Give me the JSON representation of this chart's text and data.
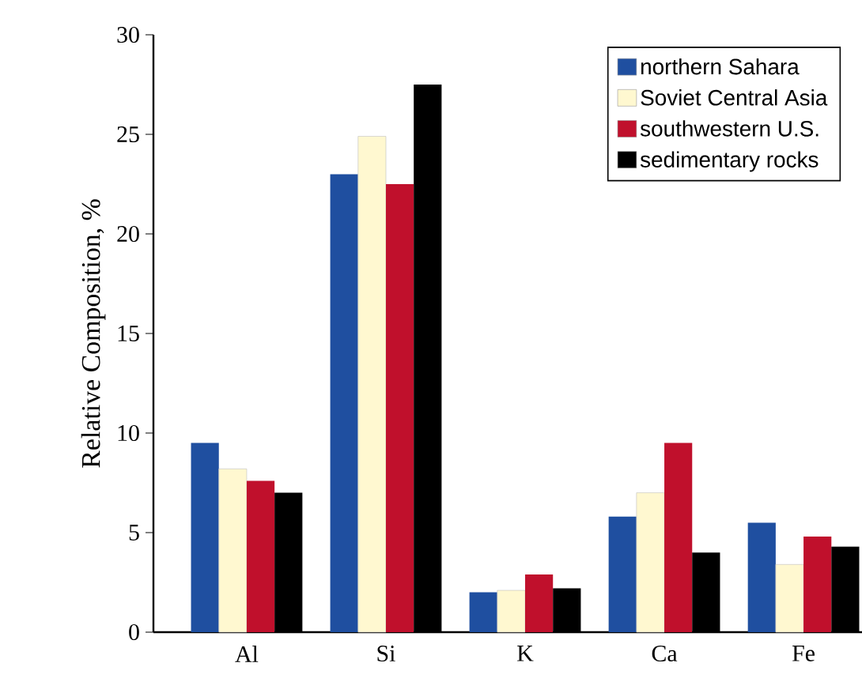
{
  "chart_data": {
    "type": "bar",
    "ylabel": "Relative Composition, %",
    "categories": [
      "Al",
      "Si",
      "K",
      "Ca",
      "Fe"
    ],
    "series": [
      {
        "name": "northern Sahara",
        "color": "#1f4fa0",
        "values": [
          9.5,
          23.0,
          2.0,
          5.8,
          5.5
        ]
      },
      {
        "name": "Soviet Central Asia",
        "color": "#fff8d0",
        "values": [
          8.2,
          24.9,
          2.1,
          7.0,
          3.4
        ]
      },
      {
        "name": "southwestern U.S.",
        "color": "#c0102c",
        "values": [
          7.6,
          22.5,
          2.9,
          9.5,
          4.8
        ]
      },
      {
        "name": "sedimentary rocks",
        "color": "#000000",
        "values": [
          7.0,
          27.5,
          2.2,
          4.0,
          4.3
        ]
      }
    ],
    "ylim": [
      0,
      30
    ],
    "yticks": [
      0,
      5,
      10,
      15,
      20,
      25,
      30
    ],
    "legend": "top right",
    "grid": false
  }
}
